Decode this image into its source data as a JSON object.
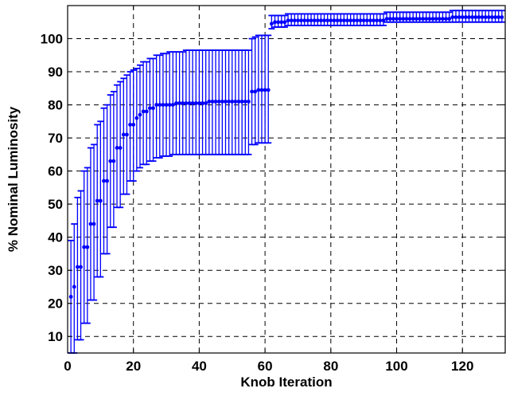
{
  "chart_data": {
    "type": "errorbar",
    "title": "",
    "xlabel": "Knob Iteration",
    "ylabel": "% Nominal Luminosity",
    "xlim": [
      0,
      133
    ],
    "ylim": [
      5,
      110
    ],
    "xticks": [
      0,
      20,
      40,
      60,
      80,
      100,
      120
    ],
    "yticks": [
      10,
      20,
      30,
      40,
      50,
      60,
      70,
      80,
      90,
      100
    ],
    "grid": true,
    "series_color": "#0000ff",
    "series": [
      {
        "x": [
          1,
          2,
          3,
          4,
          5,
          6,
          7,
          8,
          9,
          10,
          11,
          12,
          13,
          14,
          15,
          16,
          17,
          18,
          19,
          20,
          21,
          22,
          23,
          24,
          25,
          26,
          27,
          28,
          29,
          30,
          31,
          32,
          33,
          34,
          35,
          36,
          37,
          38,
          39,
          40,
          41,
          42,
          43,
          44,
          45,
          46,
          47,
          48,
          49,
          50,
          51,
          52,
          53,
          54,
          55,
          56,
          57,
          58,
          59,
          60,
          61,
          62,
          63,
          64,
          65,
          66,
          67,
          68,
          69,
          70,
          71,
          72,
          73,
          74,
          75,
          76,
          77,
          78,
          79,
          80,
          81,
          82,
          83,
          84,
          85,
          86,
          87,
          88,
          89,
          90,
          91,
          92,
          93,
          94,
          95,
          96,
          97,
          98,
          99,
          100,
          101,
          102,
          103,
          104,
          105,
          106,
          107,
          108,
          109,
          110,
          111,
          112,
          113,
          114,
          115,
          116,
          117,
          118,
          119,
          120,
          121,
          122,
          123,
          124,
          125,
          126,
          127,
          128,
          129,
          130,
          131,
          132
        ],
        "y": [
          22,
          25,
          31,
          31,
          37,
          37,
          44,
          44,
          51,
          51,
          57,
          57,
          63,
          63,
          67,
          67,
          71,
          71,
          74,
          74,
          76,
          77,
          78,
          78,
          79,
          79,
          80,
          80,
          80,
          80,
          80,
          80,
          80.5,
          80.5,
          80.5,
          80.5,
          80.5,
          80.5,
          80.5,
          80.5,
          80.5,
          80.5,
          81,
          81,
          81,
          81,
          81,
          81,
          81,
          81,
          81,
          81,
          81,
          81,
          81,
          84,
          84,
          84.5,
          84.5,
          84.5,
          84.5,
          104.5,
          105,
          105,
          105,
          105,
          105.5,
          105.5,
          105.5,
          105.5,
          105.5,
          105.5,
          105.5,
          105.5,
          105.5,
          105.5,
          105.5,
          105.5,
          105.5,
          105.5,
          105.5,
          105.5,
          105.5,
          105.5,
          105.5,
          105.5,
          105.5,
          105.5,
          105.5,
          105.5,
          105.5,
          105.5,
          105.5,
          105.5,
          105.5,
          105.5,
          106,
          106,
          106,
          106,
          106,
          106,
          106,
          106,
          106,
          106,
          106,
          106,
          106,
          106,
          106,
          106,
          106,
          106,
          106,
          106,
          106.5,
          106.5,
          106.5,
          106.5,
          106.5,
          106.5,
          106.5,
          106.5,
          106.5,
          106.5,
          106.5,
          106.5,
          106.5,
          106.5,
          106.5,
          106.5
        ],
        "low": [
          5,
          5,
          9,
          9,
          14,
          14,
          21,
          21,
          28,
          28,
          35,
          35,
          43,
          43,
          49,
          49,
          53,
          53,
          57,
          57,
          60,
          61,
          62,
          62,
          63,
          63,
          64,
          64,
          64.5,
          64.5,
          64.5,
          65,
          65,
          65,
          65,
          65,
          65,
          65,
          65,
          65,
          65,
          65,
          65,
          65,
          65,
          65,
          65,
          65,
          65,
          65,
          65,
          65,
          65,
          65,
          65,
          68,
          68,
          68.5,
          68.5,
          68.5,
          68.5,
          103,
          103.5,
          103.5,
          103.5,
          103.5,
          104,
          104,
          104,
          104,
          104,
          104,
          104,
          104,
          104,
          104,
          104,
          104,
          104,
          104,
          104,
          104,
          104,
          104,
          104,
          104,
          104,
          104,
          104,
          104,
          104,
          104,
          104,
          104,
          104,
          104,
          105,
          105,
          105,
          105,
          105,
          105,
          105,
          105,
          105,
          105,
          105,
          105,
          105,
          105,
          105,
          105,
          105,
          105,
          105,
          105,
          105,
          105,
          105,
          105,
          105,
          105,
          105,
          105,
          105,
          105,
          105,
          105,
          105,
          105,
          105,
          105
        ],
        "high": [
          39,
          44,
          52,
          54,
          60,
          61,
          67,
          68,
          74,
          75,
          79,
          80,
          83,
          84,
          86,
          87,
          88,
          89,
          90,
          90.5,
          91,
          92,
          93,
          93,
          94,
          94,
          95,
          95,
          95.5,
          95.5,
          96,
          96,
          96,
          96,
          96,
          96.5,
          96.5,
          96.5,
          96.5,
          96.5,
          96.5,
          96.5,
          96.5,
          96.5,
          96.5,
          96.5,
          96.5,
          96.5,
          96.5,
          96.5,
          96.5,
          96.5,
          96.5,
          96.5,
          96.5,
          100,
          100.5,
          101,
          101,
          101,
          101,
          107,
          107,
          107,
          107,
          107,
          107.5,
          107.5,
          107.5,
          107.5,
          107.5,
          107.5,
          107.5,
          107.5,
          107.5,
          107.5,
          107.5,
          107.5,
          107.5,
          107.5,
          107.5,
          107.5,
          107.5,
          107.5,
          107.5,
          107.5,
          107.5,
          107.5,
          107.5,
          107.5,
          107.5,
          107.5,
          107.5,
          107.5,
          107.5,
          107.5,
          108,
          108,
          108,
          108,
          108,
          108,
          108,
          108,
          108,
          108,
          108,
          108,
          108,
          108,
          108,
          108,
          108,
          108,
          108,
          108,
          108.5,
          108.5,
          108.5,
          108.5,
          108.5,
          108.5,
          108.5,
          108.5,
          108.5,
          108.5,
          108.5,
          108.5,
          108.5,
          108.5,
          108.5,
          108.5
        ]
      }
    ]
  }
}
